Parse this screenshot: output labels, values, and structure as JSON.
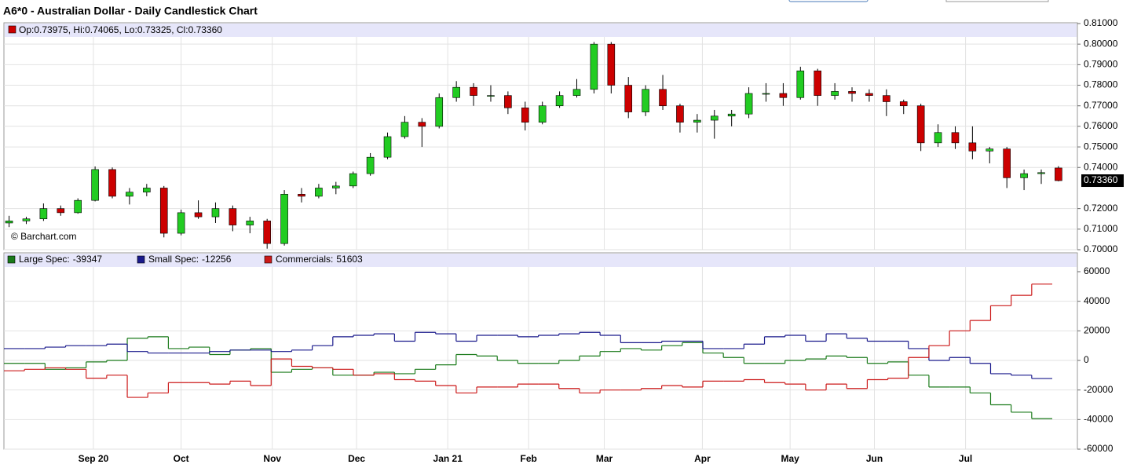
{
  "chart_data": [
    {
      "type": "candlestick",
      "title": "A6*0 - Australian Dollar - Daily Candlestick Chart",
      "watermark": "© Barchart.com",
      "ohlc_labels": [
        "Op:",
        ", Hi:",
        ", Lo:",
        ", Cl:"
      ],
      "last_value_labels": [
        "0.73975",
        "0.74065",
        "0.73325",
        "0.73360"
      ],
      "up_color": "#22cc22",
      "down_color": "#cc0000",
      "xlim": [
        -0.3,
        62.1
      ],
      "xticks": [
        {
          "value": 4.9,
          "label": "Sep 20"
        },
        {
          "value": 10.0,
          "label": "Oct"
        },
        {
          "value": 15.3,
          "label": "Nov"
        },
        {
          "value": 20.2,
          "label": "Dec"
        },
        {
          "value": 25.5,
          "label": "Jan 21"
        },
        {
          "value": 30.2,
          "label": "Feb"
        },
        {
          "value": 34.6,
          "label": "Mar"
        },
        {
          "value": 40.3,
          "label": "Apr"
        },
        {
          "value": 45.4,
          "label": "May"
        },
        {
          "value": 50.3,
          "label": "Jun"
        },
        {
          "value": 55.6,
          "label": "Jul"
        }
      ],
      "ylim": [
        0.7,
        0.81
      ],
      "yticks": [
        {
          "value": 0.7,
          "label": "0.70000"
        },
        {
          "value": 0.71,
          "label": "0.71000"
        },
        {
          "value": 0.72,
          "label": "0.72000"
        },
        {
          "value": 0.74,
          "label": "0.74000"
        },
        {
          "value": 0.75,
          "label": "0.75000"
        },
        {
          "value": 0.76,
          "label": "0.76000"
        },
        {
          "value": 0.77,
          "label": "0.77000"
        },
        {
          "value": 0.78,
          "label": "0.78000"
        },
        {
          "value": 0.79,
          "label": "0.79000"
        },
        {
          "value": 0.8,
          "label": "0.80000"
        },
        {
          "value": 0.81,
          "label": "0.81000"
        }
      ],
      "grid": true,
      "candles": [
        [
          0.713,
          0.7165,
          0.711,
          0.714
        ],
        [
          0.714,
          0.716,
          0.7125,
          0.715
        ],
        [
          0.715,
          0.7225,
          0.714,
          0.72
        ],
        [
          0.72,
          0.7215,
          0.7165,
          0.718
        ],
        [
          0.718,
          0.725,
          0.7175,
          0.724
        ],
        [
          0.724,
          0.7405,
          0.7235,
          0.739
        ],
        [
          0.739,
          0.74,
          0.725,
          0.726
        ],
        [
          0.726,
          0.73,
          0.722,
          0.728
        ],
        [
          0.728,
          0.732,
          0.726,
          0.73
        ],
        [
          0.73,
          0.731,
          0.706,
          0.708
        ],
        [
          0.708,
          0.7195,
          0.707,
          0.718
        ],
        [
          0.718,
          0.724,
          0.715,
          0.716
        ],
        [
          0.716,
          0.723,
          0.713,
          0.72
        ],
        [
          0.72,
          0.7215,
          0.709,
          0.712
        ],
        [
          0.712,
          0.716,
          0.708,
          0.714
        ],
        [
          0.714,
          0.715,
          0.7005,
          0.703
        ],
        [
          0.703,
          0.729,
          0.702,
          0.727
        ],
        [
          0.727,
          0.73,
          0.723,
          0.726
        ],
        [
          0.726,
          0.732,
          0.725,
          0.73
        ],
        [
          0.73,
          0.733,
          0.727,
          0.731
        ],
        [
          0.731,
          0.738,
          0.73,
          0.737
        ],
        [
          0.737,
          0.747,
          0.736,
          0.745
        ],
        [
          0.745,
          0.757,
          0.744,
          0.755
        ],
        [
          0.755,
          0.765,
          0.754,
          0.762
        ],
        [
          0.762,
          0.764,
          0.75,
          0.76
        ],
        [
          0.76,
          0.776,
          0.759,
          0.774
        ],
        [
          0.774,
          0.782,
          0.772,
          0.779
        ],
        [
          0.779,
          0.781,
          0.77,
          0.775
        ],
        [
          0.775,
          0.78,
          0.772,
          0.775
        ],
        [
          0.775,
          0.777,
          0.766,
          0.769
        ],
        [
          0.769,
          0.772,
          0.758,
          0.762
        ],
        [
          0.762,
          0.772,
          0.761,
          0.77
        ],
        [
          0.77,
          0.777,
          0.769,
          0.775
        ],
        [
          0.775,
          0.783,
          0.774,
          0.778
        ],
        [
          0.778,
          0.801,
          0.776,
          0.8
        ],
        [
          0.8,
          0.801,
          0.776,
          0.78
        ],
        [
          0.78,
          0.784,
          0.764,
          0.767
        ],
        [
          0.767,
          0.78,
          0.765,
          0.778
        ],
        [
          0.778,
          0.785,
          0.768,
          0.77
        ],
        [
          0.77,
          0.771,
          0.757,
          0.762
        ],
        [
          0.762,
          0.766,
          0.757,
          0.763
        ],
        [
          0.763,
          0.768,
          0.754,
          0.765
        ],
        [
          0.765,
          0.768,
          0.76,
          0.766
        ],
        [
          0.766,
          0.779,
          0.764,
          0.776
        ],
        [
          0.776,
          0.781,
          0.772,
          0.776
        ],
        [
          0.776,
          0.781,
          0.77,
          0.774
        ],
        [
          0.774,
          0.789,
          0.773,
          0.787
        ],
        [
          0.787,
          0.788,
          0.77,
          0.775
        ],
        [
          0.775,
          0.781,
          0.773,
          0.777
        ],
        [
          0.777,
          0.779,
          0.772,
          0.776
        ],
        [
          0.776,
          0.778,
          0.772,
          0.775
        ],
        [
          0.775,
          0.778,
          0.765,
          0.772
        ],
        [
          0.772,
          0.773,
          0.766,
          0.77
        ],
        [
          0.77,
          0.771,
          0.748,
          0.752
        ],
        [
          0.752,
          0.761,
          0.75,
          0.757
        ],
        [
          0.757,
          0.76,
          0.749,
          0.752
        ],
        [
          0.752,
          0.76,
          0.744,
          0.748
        ],
        [
          0.748,
          0.75,
          0.742,
          0.749
        ],
        [
          0.749,
          0.75,
          0.73,
          0.735
        ],
        [
          0.735,
          0.739,
          0.729,
          0.737
        ],
        [
          0.737,
          0.739,
          0.732,
          0.7375
        ],
        [
          0.73975,
          0.74065,
          0.73325,
          0.7336
        ]
      ]
    },
    {
      "type": "step",
      "xlim": [
        0,
        51
      ],
      "ylim": [
        -60000,
        60000
      ],
      "yticks": [
        60000,
        40000,
        20000,
        0,
        -20000,
        -40000,
        -60000
      ],
      "grid": true,
      "series": [
        {
          "name": "Large Spec:",
          "color": "#1a7a1a",
          "values": [
            -2000,
            -2000,
            -6000,
            -5000,
            -1000,
            0,
            15000,
            16000,
            8000,
            9000,
            4000,
            7000,
            8000,
            -8000,
            -6000,
            -5000,
            -10000,
            -10000,
            -8000,
            -9000,
            -6000,
            -3000,
            4000,
            3000,
            0,
            -2000,
            -2000,
            0,
            3000,
            6000,
            8000,
            7000,
            10000,
            12000,
            5000,
            2000,
            -2000,
            -2000,
            0,
            1000,
            3000,
            2000,
            -2000,
            -1000,
            -10000,
            -18000,
            -18000,
            -22000,
            -30000,
            -35000,
            -39347
          ]
        },
        {
          "name": "Small Spec:",
          "color": "#1a1a8c",
          "values": [
            8000,
            8000,
            9000,
            10000,
            10000,
            11000,
            6000,
            5000,
            5000,
            5000,
            6000,
            7000,
            7000,
            6000,
            7000,
            10000,
            16000,
            17000,
            18000,
            13000,
            19000,
            18000,
            13000,
            17000,
            17000,
            16000,
            17000,
            18000,
            19000,
            17000,
            12000,
            12000,
            13000,
            13000,
            8000,
            8000,
            11000,
            16000,
            17000,
            13000,
            18000,
            15000,
            13000,
            13000,
            8000,
            0,
            2000,
            -2000,
            -9000,
            -10000,
            -12256
          ]
        },
        {
          "name": "Commercials:",
          "color": "#cc1a1a",
          "values": [
            -7000,
            -6000,
            -5000,
            -6000,
            -12000,
            -10000,
            -25000,
            -22000,
            -15000,
            -15000,
            -16000,
            -14000,
            -17000,
            1000,
            -4000,
            -5000,
            -6000,
            -10000,
            -9000,
            -13000,
            -14000,
            -17000,
            -22000,
            -18000,
            -18000,
            -16000,
            -16000,
            -19000,
            -22000,
            -20000,
            -20000,
            -19000,
            -17000,
            -18000,
            -14000,
            -14000,
            -13000,
            -15000,
            -16000,
            -20000,
            -16000,
            -19000,
            -13000,
            -12000,
            2000,
            10000,
            20000,
            27000,
            37000,
            44000,
            51603
          ]
        }
      ]
    }
  ]
}
